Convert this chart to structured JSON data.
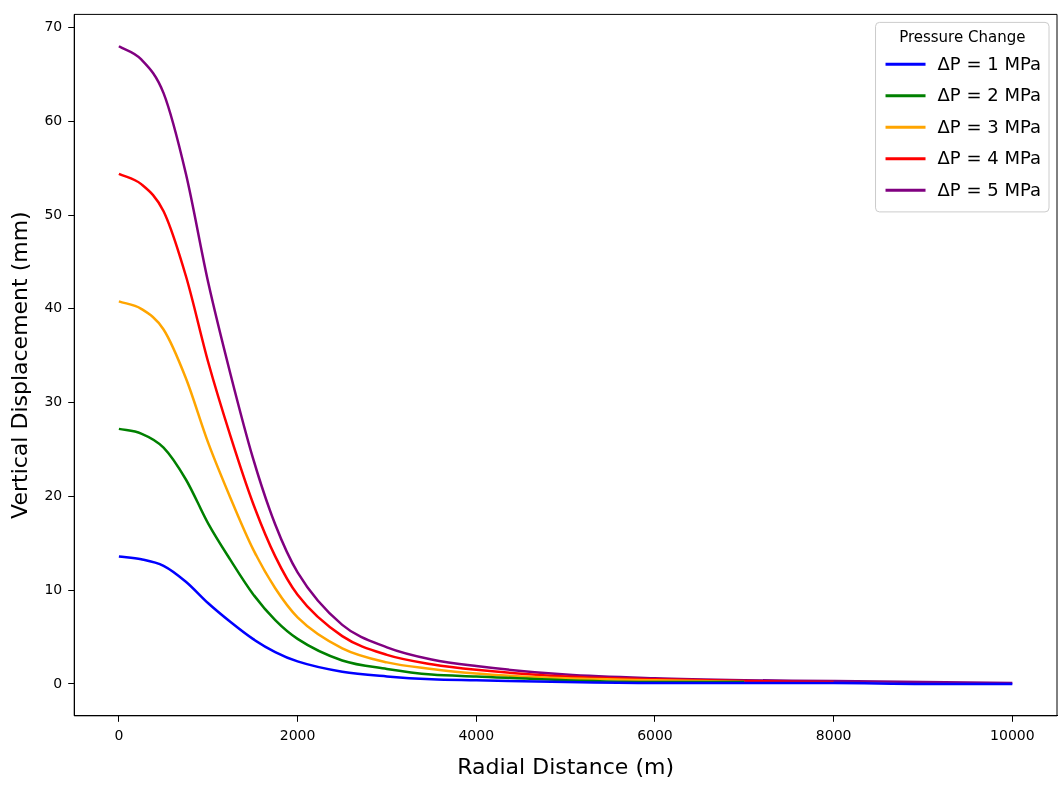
{
  "chart_data": {
    "type": "line",
    "xlabel": "Radial Distance (m)",
    "ylabel": "Vertical Displacement (mm)",
    "legend_title": "Pressure Change",
    "legend": "top right",
    "grid": false,
    "marker": "none",
    "line_style": "solid",
    "x": [
      0,
      250,
      500,
      750,
      1000,
      1250,
      1500,
      1750,
      2000,
      2500,
      3000,
      3500,
      4000,
      5000,
      6000,
      7000,
      8000,
      9000,
      10000
    ],
    "xlim": [
      -500,
      10500
    ],
    "xticks": [
      0,
      2000,
      4000,
      6000,
      8000,
      10000
    ],
    "ylim": [
      -3.4,
      71.4
    ],
    "yticks": [
      0,
      10,
      20,
      30,
      40,
      50,
      60,
      70
    ],
    "series": [
      {
        "name": "ΔP = 1 MPa",
        "color": "#0000ff",
        "values": [
          13.6,
          13.3,
          12.6,
          10.9,
          8.6,
          6.6,
          4.8,
          3.4,
          2.4,
          1.3,
          0.8,
          0.5,
          0.4,
          0.2,
          0.1,
          0.1,
          0.1,
          0.0,
          0.0
        ]
      },
      {
        "name": "ΔP = 2 MPa",
        "color": "#008000",
        "values": [
          27.2,
          26.7,
          25.2,
          21.8,
          17.1,
          13.2,
          9.6,
          6.8,
          4.8,
          2.5,
          1.6,
          1.0,
          0.8,
          0.4,
          0.2,
          0.2,
          null,
          null,
          null
        ]
      },
      {
        "name": "ΔP = 3 MPa",
        "color": "#ffa500",
        "values": [
          40.8,
          40.0,
          37.8,
          32.6,
          25.7,
          19.8,
          14.4,
          10.2,
          7.1,
          3.8,
          2.3,
          1.6,
          1.1,
          0.6,
          0.4,
          0.2,
          null,
          null,
          null
        ]
      },
      {
        "name": "ΔP = 4 MPa",
        "color": "#ff0000",
        "values": [
          54.4,
          53.3,
          50.4,
          43.5,
          34.3,
          26.4,
          19.3,
          13.6,
          9.5,
          5.1,
          3.1,
          2.1,
          1.5,
          0.8,
          0.5,
          0.3,
          0.2,
          null,
          null
        ]
      },
      {
        "name": "ΔP = 5 MPa",
        "color": "#800080",
        "values": [
          68.0,
          66.6,
          63.0,
          54.4,
          42.8,
          33.0,
          24.1,
          17.0,
          11.9,
          6.3,
          3.9,
          2.6,
          1.9,
          1.0,
          0.6,
          0.4,
          0.3,
          0.2,
          0.1
        ]
      }
    ]
  }
}
